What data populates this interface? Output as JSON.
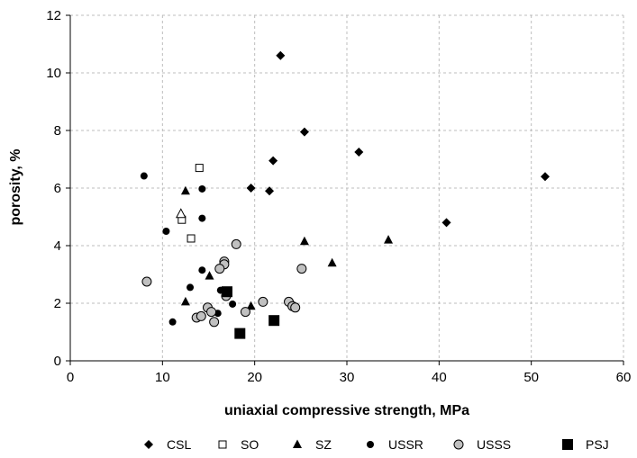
{
  "chart_data": {
    "type": "scatter",
    "xlabel": "uniaxial compressive strength, MPa",
    "ylabel": "porosity, %",
    "xlim": [
      0,
      60
    ],
    "ylim": [
      0,
      12
    ],
    "x_ticks": [
      0,
      10,
      20,
      30,
      40,
      50,
      60
    ],
    "y_ticks": [
      0,
      2,
      4,
      6,
      8,
      10,
      12
    ],
    "grid": true,
    "legend_position": "bottom",
    "series": [
      {
        "name": "CSL",
        "marker": "diamond",
        "color": "#000000",
        "points": [
          [
            22.8,
            10.6
          ],
          [
            25.4,
            7.95
          ],
          [
            31.3,
            7.25
          ],
          [
            22.0,
            6.95
          ],
          [
            19.6,
            6.0
          ],
          [
            21.6,
            5.9
          ],
          [
            51.5,
            6.4
          ],
          [
            40.8,
            4.8
          ]
        ]
      },
      {
        "name": "SO",
        "marker": "square-open",
        "color": "#000000",
        "points": [
          [
            14.0,
            6.7
          ],
          [
            12.1,
            4.9
          ],
          [
            13.1,
            4.25
          ]
        ]
      },
      {
        "name": "SZ",
        "marker": "triangle",
        "color": "#000000",
        "points": [
          [
            12.5,
            5.9
          ],
          [
            25.4,
            4.15
          ],
          [
            34.5,
            4.2
          ],
          [
            28.4,
            3.4
          ],
          [
            15.1,
            2.95
          ],
          [
            12.5,
            2.05
          ],
          [
            19.6,
            1.9
          ]
        ]
      },
      {
        "name": "USSR",
        "marker": "circle",
        "color": "#000000",
        "points": [
          [
            8.0,
            6.42
          ],
          [
            14.3,
            5.97
          ],
          [
            14.3,
            4.95
          ],
          [
            10.4,
            4.5
          ],
          [
            14.3,
            3.15
          ],
          [
            13.0,
            2.55
          ],
          [
            16.3,
            2.45
          ],
          [
            17.6,
            1.97
          ],
          [
            16.0,
            1.65
          ],
          [
            11.1,
            1.35
          ]
        ]
      },
      {
        "name": "USSS",
        "marker": "circle-gray",
        "color": "#c0c0c0",
        "points": [
          [
            8.3,
            2.75
          ],
          [
            18.0,
            4.05
          ],
          [
            16.7,
            3.45
          ],
          [
            16.7,
            3.35
          ],
          [
            16.2,
            3.2
          ],
          [
            25.1,
            3.2
          ],
          [
            16.9,
            2.25
          ],
          [
            14.9,
            1.85
          ],
          [
            20.9,
            2.05
          ],
          [
            23.7,
            2.05
          ],
          [
            24.1,
            1.9
          ],
          [
            24.4,
            1.85
          ],
          [
            15.3,
            1.7
          ],
          [
            19.0,
            1.7
          ],
          [
            13.7,
            1.5
          ],
          [
            14.2,
            1.55
          ],
          [
            15.6,
            1.35
          ]
        ]
      },
      {
        "name": "PSJ",
        "marker": "square-filled",
        "color": "#000000",
        "points": [
          [
            17.0,
            2.4
          ],
          [
            22.1,
            1.4
          ],
          [
            18.4,
            0.95
          ]
        ]
      }
    ]
  }
}
